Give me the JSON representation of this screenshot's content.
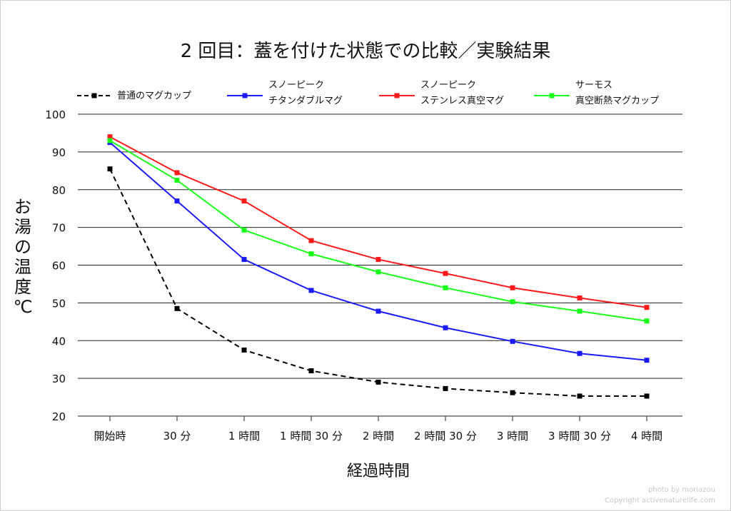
{
  "chart_data": {
    "type": "line",
    "title": "2 回目：蓋を付けた状態での比較／実験結果",
    "xlabel": "経過時間",
    "ylabel": [
      "お",
      "湯",
      "の",
      "温",
      "度",
      "℃"
    ],
    "ylim": [
      20,
      100
    ],
    "yticks": [
      20,
      30,
      40,
      50,
      60,
      70,
      80,
      90,
      100
    ],
    "grid": "horizontal",
    "legend_position": "top",
    "categories": [
      "開始時",
      "30 分",
      "1 時間",
      "1 時間 30 分",
      "2 時間",
      "2 時間 30 分",
      "3 時間",
      "3 時間 30 分",
      "4 時間"
    ],
    "series": [
      {
        "name": "普通のマグカップ",
        "legend_lines": [
          "普通のマグカップ"
        ],
        "color": "#000000",
        "dashed": true,
        "values": [
          85.5,
          48.5,
          37.5,
          32,
          29,
          27.3,
          26.2,
          25.3,
          25.3
        ]
      },
      {
        "name": "スノーピーク チタンダブルマグ",
        "legend_lines": [
          "スノーピーク",
          "チタンダブルマグ"
        ],
        "color": "#1a1aff",
        "dashed": false,
        "values": [
          92.5,
          77,
          61.5,
          53.3,
          47.8,
          43.4,
          39.8,
          36.6,
          34.8
        ]
      },
      {
        "name": "スノーピーク ステンレス真空マグ",
        "legend_lines": [
          "スノーピーク",
          "ステンレス真空マグ"
        ],
        "color": "#ff1a1a",
        "dashed": false,
        "values": [
          94,
          84.5,
          77,
          66.5,
          61.5,
          57.8,
          54,
          51.3,
          48.8
        ]
      },
      {
        "name": "サーモス 真空断熱マグカップ",
        "legend_lines": [
          "サーモス",
          "真空断熱マグカップ"
        ],
        "color": "#1aff1a",
        "dashed": false,
        "values": [
          93,
          82.5,
          69.3,
          63,
          58.2,
          54,
          50.3,
          47.8,
          45.2
        ]
      }
    ]
  },
  "credit": {
    "line1": "photo by moriazou",
    "line2": "Copyright activenaturelife.com"
  }
}
